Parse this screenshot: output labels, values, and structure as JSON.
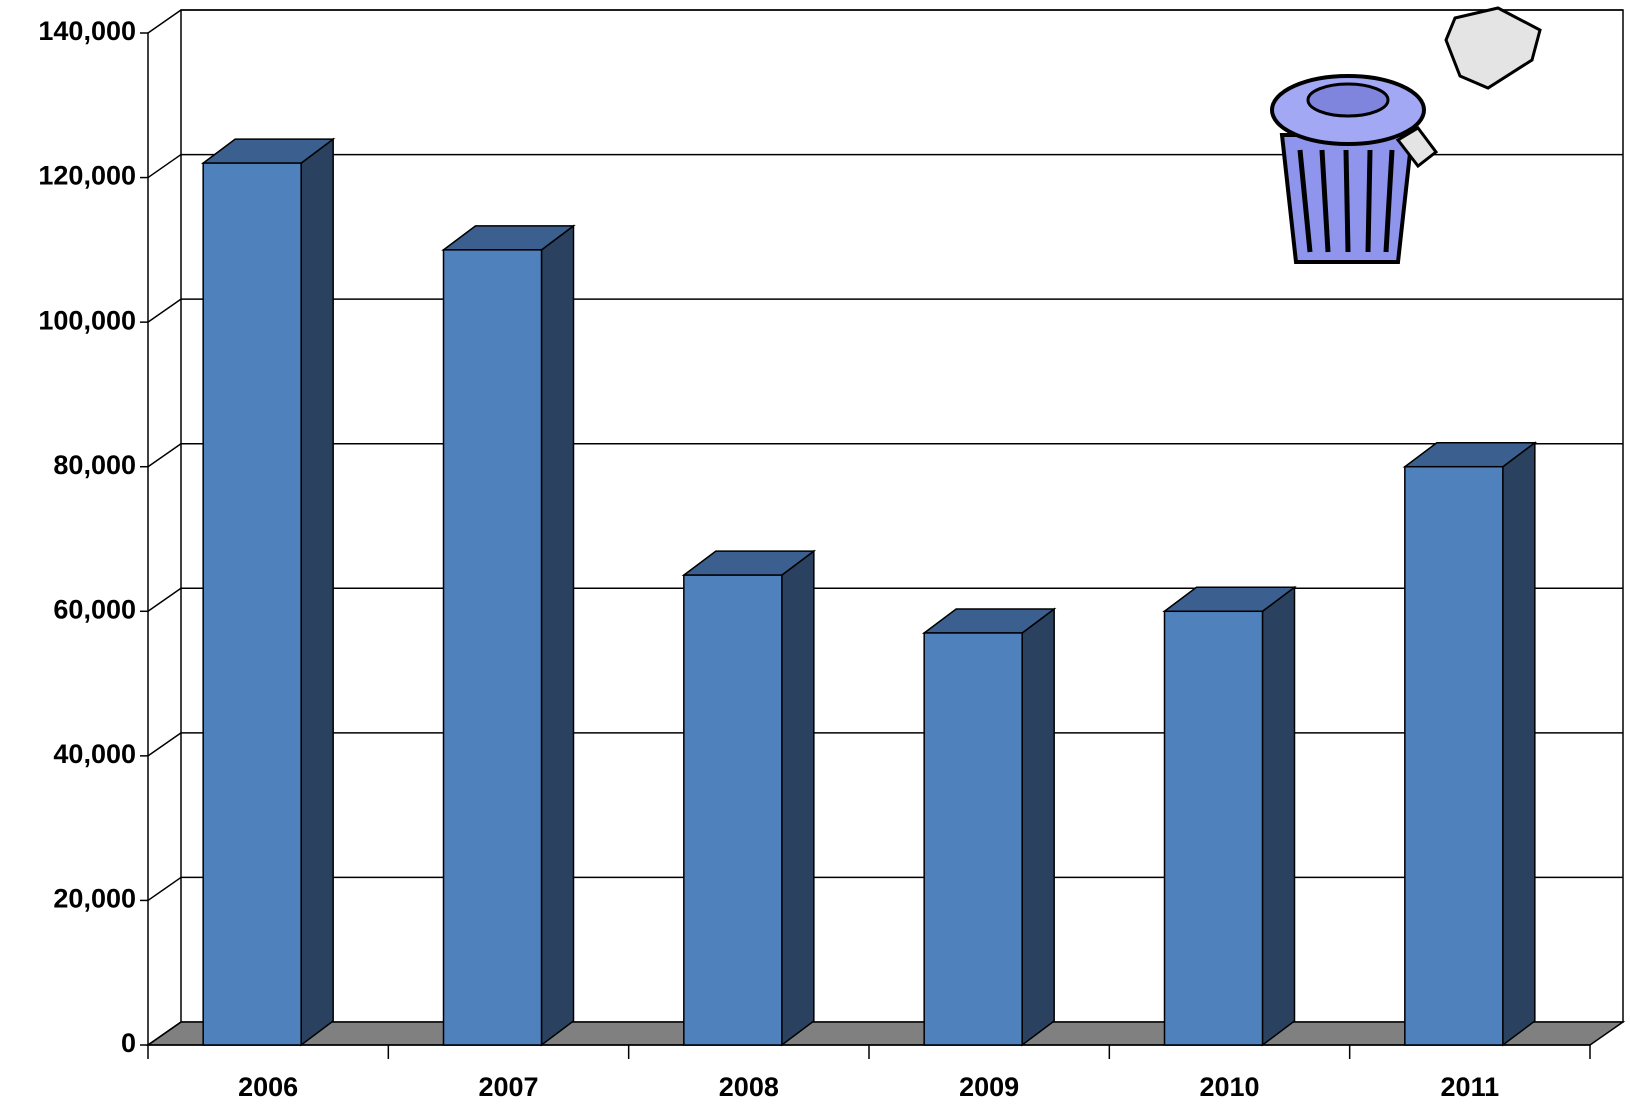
{
  "chart_data": {
    "type": "bar3d",
    "categories": [
      "2006",
      "2007",
      "2008",
      "2009",
      "2010",
      "2011"
    ],
    "values": [
      122000,
      110000,
      65000,
      57000,
      60000,
      80000
    ],
    "color": "#4f81bd",
    "ylim": [
      0,
      140000
    ],
    "yticks": [
      0,
      {
        "value": 20000,
        "label": "20,000"
      },
      {
        "value": 40000,
        "label": "40,000"
      },
      {
        "value": 60000,
        "label": "60,000"
      },
      {
        "value": 80000,
        "label": "80,000"
      },
      {
        "value": 100000,
        "label": "100,000"
      },
      {
        "value": 120000,
        "label": "120,000"
      },
      {
        "value": 140000,
        "label": "140,000"
      }
    ],
    "grid": true
  }
}
